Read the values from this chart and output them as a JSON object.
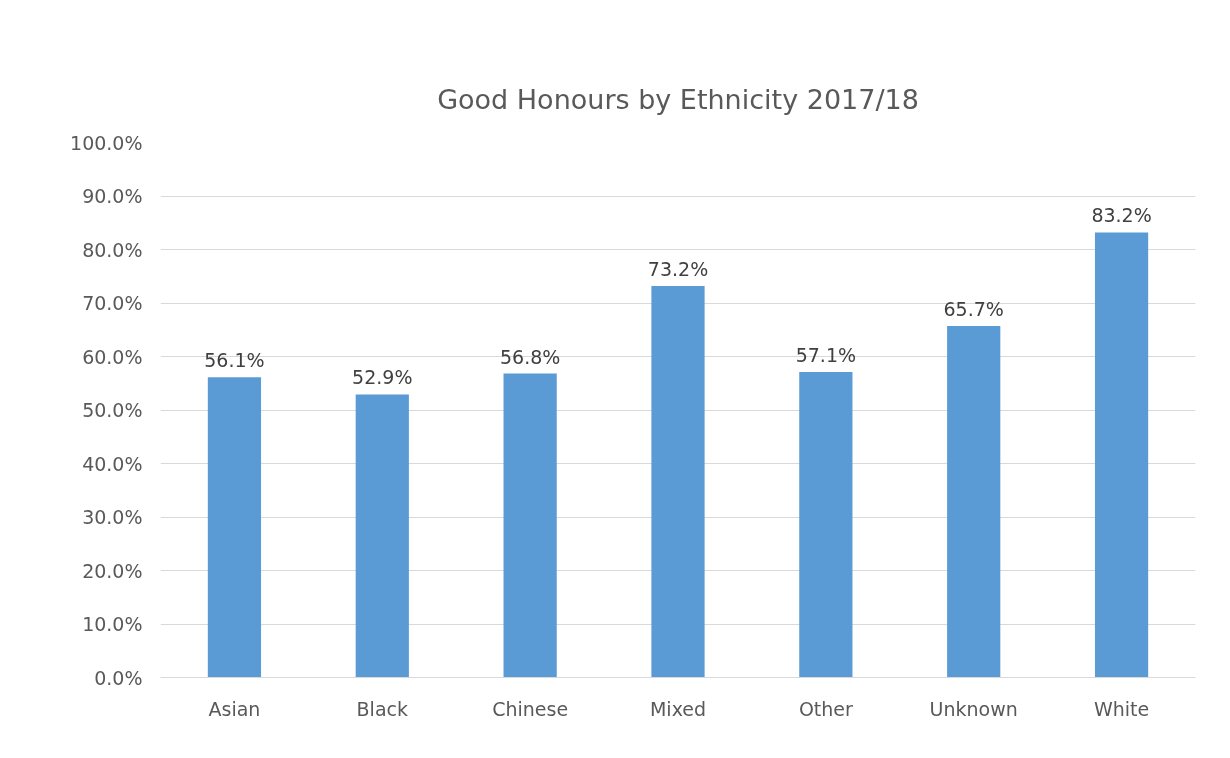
{
  "chart_data": {
    "type": "bar",
    "title": "Good Honours by Ethnicity 2017/18",
    "categories": [
      "Asian",
      "Black",
      "Chinese",
      "Mixed",
      "Other",
      "Unknown",
      "White"
    ],
    "values": [
      56.1,
      52.9,
      56.8,
      73.2,
      57.1,
      65.7,
      83.2
    ],
    "value_labels": [
      "56.1%",
      "52.9%",
      "56.8%",
      "73.2%",
      "57.1%",
      "65.7%",
      "83.2%"
    ],
    "color": "#5b9bd5",
    "ylim": [
      0,
      100
    ],
    "yticks": [
      {
        "value": 0,
        "label": "0.0%"
      },
      {
        "value": 10,
        "label": "10.0%"
      },
      {
        "value": 20,
        "label": "20.0%"
      },
      {
        "value": 30,
        "label": "30.0%"
      },
      {
        "value": 40,
        "label": "40.0%"
      },
      {
        "value": 50,
        "label": "50.0%"
      },
      {
        "value": 60,
        "label": "60.0%"
      },
      {
        "value": 70,
        "label": "70.0%"
      },
      {
        "value": 80,
        "label": "80.0%"
      },
      {
        "value": 90,
        "label": "90.0%"
      },
      {
        "value": 100,
        "label": "100.0%"
      }
    ],
    "grid": "y"
  }
}
